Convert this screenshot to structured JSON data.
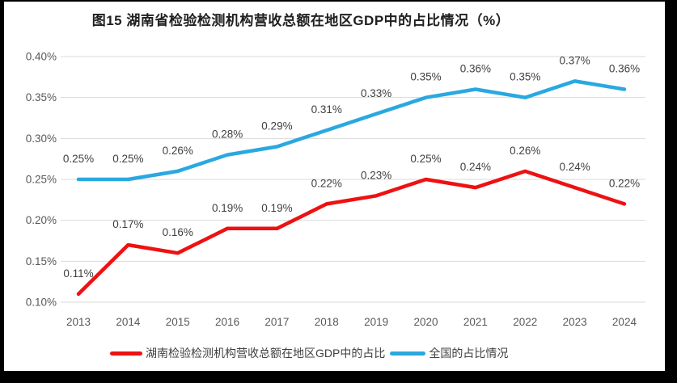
{
  "title": "图15 湖南省检验检测机构营收总额在地区GDP中的占比情况（%）",
  "colors": {
    "hunan_red": "#EE1111",
    "national_blue": "#2AA8E0",
    "gridline": "#D9D9D9",
    "tick_text": "#595959",
    "data_label_text": "#404040",
    "title_text": "#1F1F1F",
    "frame": "#000000",
    "background": "#FFFFFF"
  },
  "chart_data": {
    "type": "line",
    "title": "图15 湖南省检验检测机构营收总额在地区GDP中的占比情况（%）",
    "categories": [
      "2013",
      "2014",
      "2015",
      "2016",
      "2017",
      "2018",
      "2019",
      "2020",
      "2021",
      "2022",
      "2023",
      "2024"
    ],
    "series": [
      {
        "name": "湖南检验检测机构营收总额在地区GDP中的占比",
        "color": "#EE1111",
        "values": [
          0.11,
          0.17,
          0.16,
          0.19,
          0.19,
          0.22,
          0.23,
          0.25,
          0.24,
          0.26,
          0.24,
          0.22
        ],
        "labels": [
          "0.11%",
          "0.17%",
          "0.16%",
          "0.19%",
          "0.19%",
          "0.22%",
          "0.23%",
          "0.25%",
          "0.24%",
          "0.26%",
          "0.24%",
          "0.22%"
        ]
      },
      {
        "name": "全国的占比情况",
        "color": "#2AA8E0",
        "values": [
          0.25,
          0.25,
          0.26,
          0.28,
          0.29,
          0.31,
          0.33,
          0.35,
          0.36,
          0.35,
          0.37,
          0.36
        ],
        "labels": [
          "0.25%",
          "0.25%",
          "0.26%",
          "0.28%",
          "0.29%",
          "0.31%",
          "0.33%",
          "0.35%",
          "0.36%",
          "0.35%",
          "0.37%",
          "0.36%"
        ]
      }
    ],
    "ylim": [
      0.1,
      0.4
    ],
    "yticks": [
      {
        "value": 0.1,
        "label": "0.10%"
      },
      {
        "value": 0.15,
        "label": "0.15%"
      },
      {
        "value": 0.2,
        "label": "0.20%"
      },
      {
        "value": 0.25,
        "label": "0.25%"
      },
      {
        "value": 0.3,
        "label": "0.30%"
      },
      {
        "value": 0.35,
        "label": "0.35%"
      },
      {
        "value": 0.4,
        "label": "0.40%"
      }
    ],
    "grid": true,
    "data_labels": true,
    "legend_position": "bottom"
  }
}
